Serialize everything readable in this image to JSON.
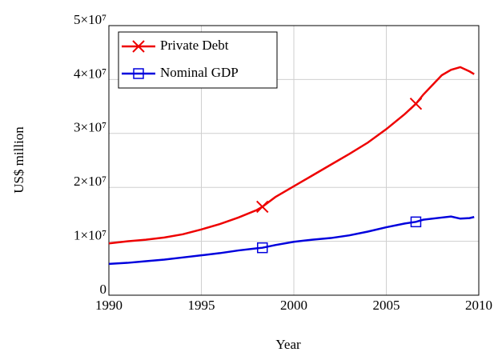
{
  "chart_data": {
    "type": "line",
    "x_label": "Year",
    "y_label": "US$ million",
    "x": [
      1990,
      1991,
      1992,
      1993,
      1994,
      1995,
      1996,
      1997,
      1998,
      1998.3,
      1999,
      2000,
      2001,
      2002,
      2003,
      2004,
      2005,
      2006,
      2006.6,
      2007,
      2008,
      2008.5,
      2009,
      2009.5,
      2009.75
    ],
    "series": [
      {
        "name": "Private Debt",
        "color": "#ee0000",
        "marker": "x",
        "values": [
          9600000,
          10000000,
          10300000,
          10700000,
          11300000,
          12200000,
          13200000,
          14400000,
          15800000,
          16400000,
          18200000,
          20200000,
          22200000,
          24200000,
          26200000,
          28300000,
          30800000,
          33600000,
          35500000,
          37200000,
          40800000,
          41800000,
          42300000,
          41500000,
          41000000
        ]
      },
      {
        "name": "Nominal GDP",
        "color": "#0000dd",
        "marker": "square",
        "values": [
          5800000,
          6000000,
          6300000,
          6600000,
          7000000,
          7400000,
          7800000,
          8300000,
          8700000,
          8800000,
          9300000,
          9900000,
          10300000,
          10600000,
          11100000,
          11800000,
          12600000,
          13300000,
          13600000,
          14000000,
          14400000,
          14600000,
          14200000,
          14300000,
          14500000
        ]
      }
    ],
    "xlim": [
      1990,
      2010
    ],
    "xticks": [
      1990,
      1995,
      2000,
      2005,
      2010
    ],
    "ylim": [
      0,
      50000000
    ],
    "yticks": [
      0,
      {
        "value": 10000000,
        "label": "1×10⁷"
      },
      {
        "value": 20000000,
        "label": "2×10⁷"
      },
      {
        "value": 30000000,
        "label": "3×10⁷"
      },
      {
        "value": 40000000,
        "label": "4×10⁷"
      },
      {
        "value": 50000000,
        "label": "5×10⁷"
      }
    ],
    "grid": true,
    "legend": "upper left"
  }
}
